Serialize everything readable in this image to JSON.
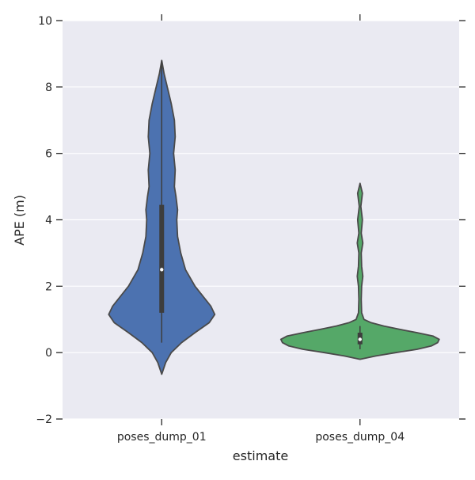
{
  "chart_data": {
    "type": "violin",
    "title": "",
    "xlabel": "estimate",
    "ylabel": "APE (m)",
    "ylim": [
      -2,
      10
    ],
    "yticks": [
      -2,
      0,
      2,
      4,
      6,
      8,
      10
    ],
    "ytick_labels": [
      "−2",
      "0",
      "2",
      "4",
      "6",
      "8",
      "10"
    ],
    "grid": true,
    "background_color": "#eaeaf2",
    "grid_color": "#ffffff",
    "categories": [
      "poses_dump_01",
      "poses_dump_04"
    ],
    "series": [
      {
        "category": "poses_dump_01",
        "color": "#4c72b0",
        "kde_min": -0.65,
        "kde_max": 8.8,
        "min": 0.3,
        "q1": 1.2,
        "median": 2.5,
        "q3": 4.45,
        "max": 8.8,
        "density_profile": [
          [
            -0.65,
            0.0
          ],
          [
            -0.3,
            0.05
          ],
          [
            0.0,
            0.12
          ],
          [
            0.3,
            0.25
          ],
          [
            0.6,
            0.42
          ],
          [
            0.9,
            0.6
          ],
          [
            1.15,
            0.67
          ],
          [
            1.4,
            0.62
          ],
          [
            1.7,
            0.52
          ],
          [
            2.0,
            0.42
          ],
          [
            2.5,
            0.3
          ],
          [
            3.0,
            0.24
          ],
          [
            3.5,
            0.2
          ],
          [
            4.0,
            0.19
          ],
          [
            4.3,
            0.2
          ],
          [
            4.7,
            0.18
          ],
          [
            5.0,
            0.16
          ],
          [
            5.5,
            0.17
          ],
          [
            6.0,
            0.15
          ],
          [
            6.5,
            0.17
          ],
          [
            7.0,
            0.16
          ],
          [
            7.5,
            0.12
          ],
          [
            8.0,
            0.07
          ],
          [
            8.4,
            0.03
          ],
          [
            8.8,
            0.0
          ]
        ]
      },
      {
        "category": "poses_dump_04",
        "color": "#55a868",
        "kde_min": -0.2,
        "kde_max": 5.1,
        "min": 0.1,
        "q1": 0.25,
        "median": 0.4,
        "q3": 0.6,
        "max": 0.8,
        "density_profile": [
          [
            -0.2,
            0.0
          ],
          [
            -0.1,
            0.2
          ],
          [
            0.0,
            0.45
          ],
          [
            0.1,
            0.72
          ],
          [
            0.2,
            0.9
          ],
          [
            0.3,
            0.98
          ],
          [
            0.4,
            1.0
          ],
          [
            0.5,
            0.92
          ],
          [
            0.6,
            0.72
          ],
          [
            0.7,
            0.5
          ],
          [
            0.8,
            0.3
          ],
          [
            0.9,
            0.14
          ],
          [
            1.0,
            0.05
          ],
          [
            1.2,
            0.02
          ],
          [
            1.6,
            0.015
          ],
          [
            2.0,
            0.02
          ],
          [
            2.3,
            0.035
          ],
          [
            2.6,
            0.02
          ],
          [
            3.0,
            0.015
          ],
          [
            3.3,
            0.035
          ],
          [
            3.6,
            0.015
          ],
          [
            4.0,
            0.03
          ],
          [
            4.4,
            0.01
          ],
          [
            4.8,
            0.03
          ],
          [
            5.1,
            0.0
          ]
        ]
      }
    ]
  }
}
